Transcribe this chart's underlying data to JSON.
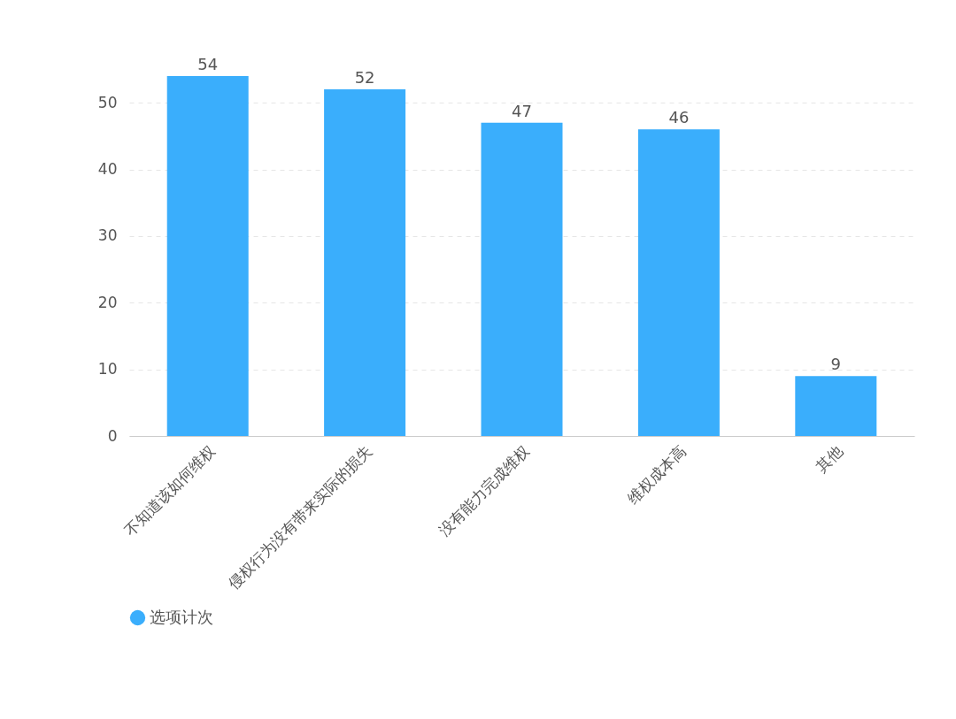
{
  "chart_data": {
    "type": "bar",
    "categories": [
      "不知道该如何维权",
      "侵权行为没有带来实际的损失",
      "没有能力完成维权",
      "维权成本高",
      "其他"
    ],
    "series": [
      {
        "name": "选项计次",
        "color": "#3aaefc",
        "values": [
          54,
          52,
          47,
          46,
          9
        ]
      }
    ],
    "ylim": [
      0,
      54
    ],
    "yticks": [
      0,
      10,
      20,
      30,
      40,
      50
    ],
    "grid": "y",
    "legend": "bottom",
    "data_labels": true
  }
}
